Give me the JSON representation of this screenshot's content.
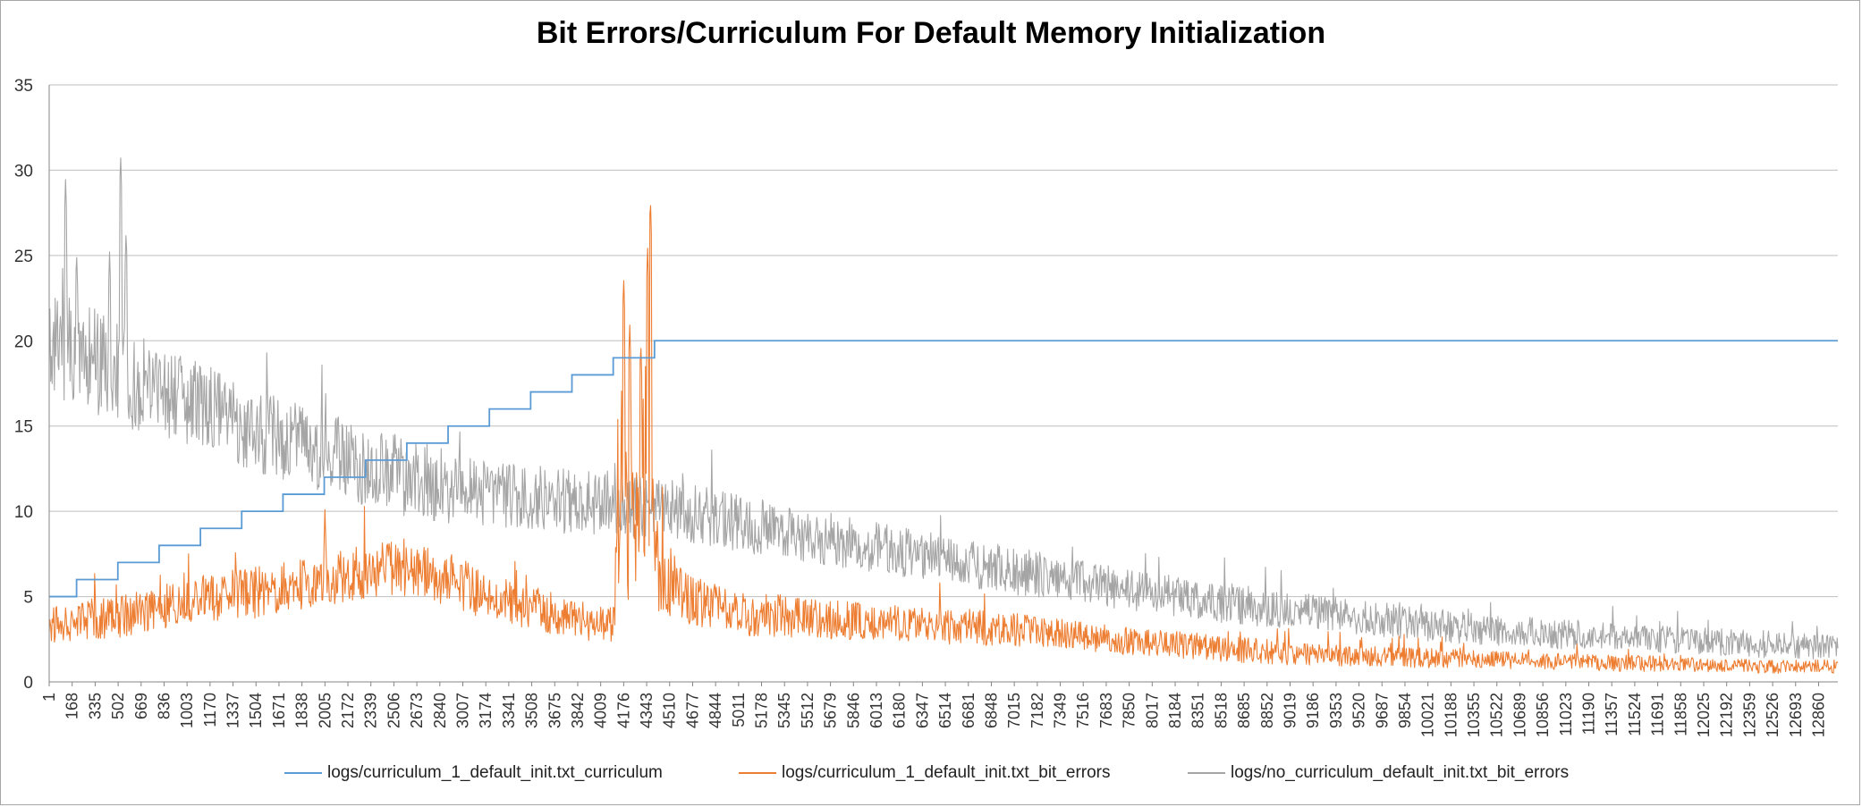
{
  "chart_data": {
    "type": "line",
    "title": "Bit Errors/Curriculum For Default Memory Initialization",
    "xlabel": "",
    "ylabel": "",
    "ylim": [
      0,
      35
    ],
    "y_ticks": [
      "0",
      "5",
      "10",
      "15",
      "20",
      "25",
      "30",
      "35"
    ],
    "x_range": [
      1,
      13000
    ],
    "x_ticks": [
      "1",
      "168",
      "335",
      "502",
      "669",
      "836",
      "1003",
      "1170",
      "1337",
      "1504",
      "1671",
      "1838",
      "2005",
      "2172",
      "2339",
      "2506",
      "2673",
      "2840",
      "3007",
      "3174",
      "3341",
      "3508",
      "3675",
      "3842",
      "4009",
      "4176",
      "4343",
      "4510",
      "4677",
      "4844",
      "5011",
      "5178",
      "5345",
      "5512",
      "5679",
      "5846",
      "6013",
      "6180",
      "6347",
      "6514",
      "6681",
      "6848",
      "7015",
      "7182",
      "7349",
      "7516",
      "7683",
      "7850",
      "8017",
      "8184",
      "8351",
      "8518",
      "8685",
      "8852",
      "9019",
      "9186",
      "9353",
      "9520",
      "9687",
      "9854",
      "10021",
      "10188",
      "10355",
      "10522",
      "10689",
      "10856",
      "11023",
      "11190",
      "11357",
      "11524",
      "11691",
      "11858",
      "12025",
      "12192",
      "12359",
      "12526",
      "12693",
      "12860"
    ],
    "grid": true,
    "legend_position": "bottom",
    "series": [
      {
        "name": "logs/curriculum_1_default_init.txt_curriculum",
        "color": "#5b9bd5",
        "x": [
          1,
          200,
          500,
          800,
          1100,
          1400,
          1700,
          2000,
          2300,
          2600,
          2900,
          3200,
          3500,
          3800,
          4100,
          4400,
          13000
        ],
        "values": [
          5,
          6,
          7,
          8,
          9,
          10,
          11,
          12,
          13,
          14,
          15,
          16,
          17,
          18,
          19,
          20,
          20
        ]
      },
      {
        "name": "logs/curriculum_1_default_init.txt_bit_errors",
        "color": "#ed7d31",
        "x": [
          1,
          200,
          500,
          800,
          1100,
          1400,
          1700,
          2000,
          2300,
          2600,
          2900,
          3200,
          3500,
          3800,
          4100,
          4176,
          4250,
          4343,
          4400,
          4600,
          5000,
          5500,
          6000,
          6500,
          7000,
          7500,
          8000,
          8500,
          9000,
          9500,
          10000,
          10500,
          11000,
          11500,
          12000,
          12500,
          13000
        ],
        "values": [
          3.3,
          3.6,
          3.8,
          4.3,
          5.0,
          5.1,
          5.5,
          6.0,
          6.5,
          6.7,
          6.0,
          5.0,
          4.3,
          3.8,
          3.2,
          14.0,
          7.0,
          14.0,
          7.0,
          5.0,
          4.0,
          3.8,
          3.5,
          3.3,
          3.1,
          2.7,
          2.3,
          2.0,
          1.7,
          1.5,
          1.4,
          1.3,
          1.2,
          1.1,
          1.0,
          0.9,
          0.9
        ],
        "noise": [
          1.0,
          1.2,
          1.2,
          1.3,
          1.4,
          1.5,
          1.5,
          1.6,
          1.7,
          1.7,
          1.6,
          1.4,
          1.3,
          1.2,
          1.1,
          8.0,
          5.0,
          8.0,
          3.0,
          1.5,
          1.3,
          1.2,
          1.1,
          1.1,
          1.0,
          0.9,
          0.8,
          0.8,
          0.7,
          0.6,
          0.6,
          0.5,
          0.5,
          0.5,
          0.4,
          0.4,
          0.4
        ],
        "peaks": [
          [
            4176,
            23.8
          ],
          [
            4220,
            21.0
          ],
          [
            4300,
            20.0
          ],
          [
            4370,
            28.5
          ],
          [
            4350,
            25.5
          ],
          [
            2005,
            10.1
          ]
        ]
      },
      {
        "name": "logs/no_curriculum_default_init.txt_bit_errors",
        "color": "#a5a5a5",
        "x": [
          1,
          200,
          500,
          800,
          1100,
          1400,
          1700,
          2000,
          2300,
          2600,
          2900,
          3200,
          3500,
          3800,
          4100,
          4400,
          4700,
          5000,
          5500,
          6000,
          6500,
          7000,
          7500,
          8000,
          8500,
          9000,
          9500,
          10000,
          10500,
          11000,
          11500,
          12000,
          12500,
          13000
        ],
        "values": [
          19.5,
          19.5,
          18.0,
          17.0,
          16.2,
          15.0,
          14.2,
          13.5,
          12.7,
          12.0,
          11.5,
          11.0,
          10.8,
          10.5,
          10.5,
          10.2,
          9.8,
          9.3,
          8.6,
          7.9,
          7.2,
          6.5,
          5.9,
          5.2,
          4.7,
          4.2,
          3.8,
          3.4,
          3.0,
          2.8,
          2.6,
          2.4,
          2.2,
          2.0
        ],
        "noise": [
          3.2,
          3.2,
          3.0,
          2.6,
          2.6,
          2.5,
          2.4,
          2.4,
          2.4,
          2.3,
          2.2,
          2.0,
          2.0,
          1.9,
          1.9,
          1.8,
          1.8,
          1.7,
          1.6,
          1.5,
          1.4,
          1.4,
          1.3,
          1.2,
          1.2,
          1.1,
          1.0,
          1.0,
          0.9,
          0.9,
          0.8,
          0.8,
          0.8,
          0.7
        ],
        "peaks": [
          [
            120,
            29.5
          ],
          [
            520,
            31.0
          ],
          [
            560,
            26.5
          ],
          [
            440,
            25.3
          ],
          [
            200,
            25.3
          ]
        ]
      }
    ]
  }
}
